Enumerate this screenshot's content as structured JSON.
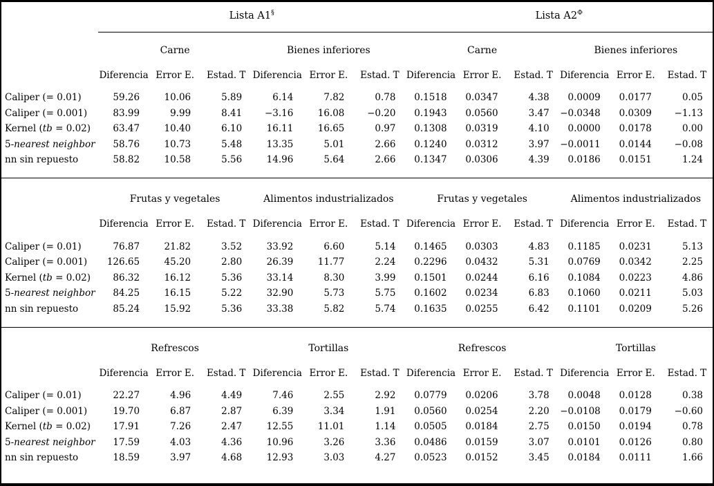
{
  "table": {
    "lista_headers": [
      {
        "label": "Lista A1",
        "sup": "§"
      },
      {
        "label": "Lista A2",
        "sup": "Φ"
      }
    ],
    "metric_headers": [
      "Diferencia",
      "Error E.",
      "Estad. T"
    ],
    "row_labels": [
      [
        {
          "t": "Caliper (= 0.01)",
          "i": false
        }
      ],
      [
        {
          "t": "Caliper (= 0.001)",
          "i": false
        }
      ],
      [
        {
          "t": "Kernel (",
          "i": false
        },
        {
          "t": "tb",
          "i": true
        },
        {
          "t": " = 0.02)",
          "i": false
        }
      ],
      [
        {
          "t": "5-",
          "i": false
        },
        {
          "t": "nearest neighbor",
          "i": true
        }
      ],
      [
        {
          "t": "nn sin repuesto",
          "i": false
        }
      ]
    ],
    "panels": [
      {
        "group_labels": [
          "Carne",
          "Bienes inferiores",
          "Carne",
          "Bienes inferiores"
        ],
        "rows": [
          [
            "59.26",
            "10.06",
            "5.89",
            "6.14",
            "7.82",
            "0.78",
            "0.1518",
            "0.0347",
            "4.38",
            "0.0009",
            "0.0177",
            "0.05"
          ],
          [
            "83.99",
            "9.99",
            "8.41",
            "−3.16",
            "16.08",
            "−0.20",
            "0.1943",
            "0.0560",
            "3.47",
            "−0.0348",
            "0.0309",
            "−1.13"
          ],
          [
            "63.47",
            "10.40",
            "6.10",
            "16.11",
            "16.65",
            "0.97",
            "0.1308",
            "0.0319",
            "4.10",
            "0.0000",
            "0.0178",
            "0.00"
          ],
          [
            "58.76",
            "10.73",
            "5.48",
            "13.35",
            "5.01",
            "2.66",
            "0.1240",
            "0.0312",
            "3.97",
            "−0.0011",
            "0.0144",
            "−0.08"
          ],
          [
            "58.82",
            "10.58",
            "5.56",
            "14.96",
            "5.64",
            "2.66",
            "0.1347",
            "0.0306",
            "4.39",
            "0.0186",
            "0.0151",
            "1.24"
          ]
        ]
      },
      {
        "group_labels": [
          "Frutas y vegetales",
          "Alimentos industrializados",
          "Frutas y vegetales",
          "Alimentos industrializados"
        ],
        "rows": [
          [
            "76.87",
            "21.82",
            "3.52",
            "33.92",
            "6.60",
            "5.14",
            "0.1465",
            "0.0303",
            "4.83",
            "0.1185",
            "0.0231",
            "5.13"
          ],
          [
            "126.65",
            "45.20",
            "2.80",
            "26.39",
            "11.77",
            "2.24",
            "0.2296",
            "0.0432",
            "5.31",
            "0.0769",
            "0.0342",
            "2.25"
          ],
          [
            "86.32",
            "16.12",
            "5.36",
            "33.14",
            "8.30",
            "3.99",
            "0.1501",
            "0.0244",
            "6.16",
            "0.1084",
            "0.0223",
            "4.86"
          ],
          [
            "84.25",
            "16.15",
            "5.22",
            "32.90",
            "5.73",
            "5.75",
            "0.1602",
            "0.0234",
            "6.83",
            "0.1060",
            "0.0211",
            "5.03"
          ],
          [
            "85.24",
            "15.92",
            "5.36",
            "33.38",
            "5.82",
            "5.74",
            "0.1635",
            "0.0255",
            "6.42",
            "0.1101",
            "0.0209",
            "5.26"
          ]
        ]
      },
      {
        "group_labels": [
          "Refrescos",
          "Tortillas",
          "Refrescos",
          "Tortillas"
        ],
        "rows": [
          [
            "22.27",
            "4.96",
            "4.49",
            "7.46",
            "2.55",
            "2.92",
            "0.0779",
            "0.0206",
            "3.78",
            "0.0048",
            "0.0128",
            "0.38"
          ],
          [
            "19.70",
            "6.87",
            "2.87",
            "6.39",
            "3.34",
            "1.91",
            "0.0560",
            "0.0254",
            "2.20",
            "−0.0108",
            "0.0179",
            "−0.60"
          ],
          [
            "17.91",
            "7.26",
            "2.47",
            "12.55",
            "11.01",
            "1.14",
            "0.0505",
            "0.0184",
            "2.75",
            "0.0150",
            "0.0194",
            "0.78"
          ],
          [
            "17.59",
            "4.03",
            "4.36",
            "10.96",
            "3.26",
            "3.36",
            "0.0486",
            "0.0159",
            "3.07",
            "0.0101",
            "0.0126",
            "0.80"
          ],
          [
            "18.59",
            "3.97",
            "4.68",
            "12.93",
            "3.03",
            "4.27",
            "0.0523",
            "0.0152",
            "3.45",
            "0.0184",
            "0.0111",
            "1.66"
          ]
        ]
      }
    ]
  }
}
